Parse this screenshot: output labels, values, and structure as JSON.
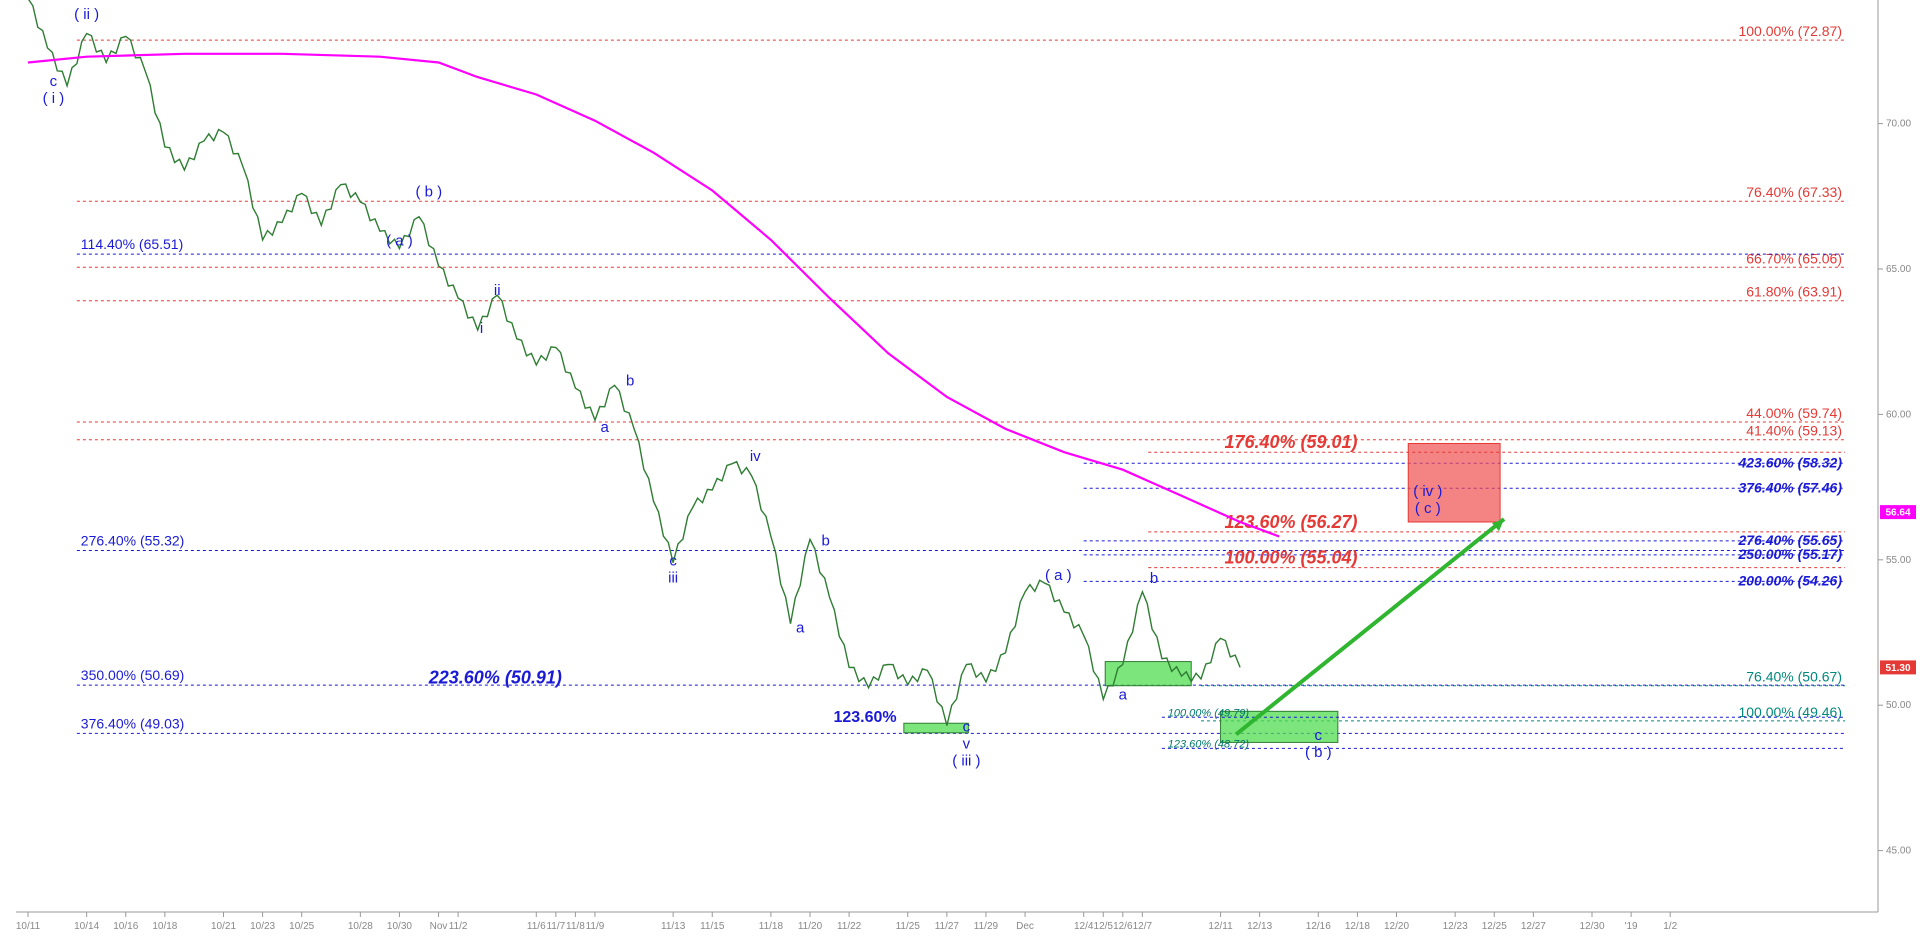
{
  "chart_data": {
    "type": "line",
    "title": "",
    "xlabel": "",
    "ylabel": "",
    "ylim": [
      43.5,
      74.5
    ],
    "grid": false,
    "x_ticks": [
      {
        "label": "10/11",
        "t": 0
      },
      {
        "label": "10/14",
        "t": 3
      },
      {
        "label": "10/16",
        "t": 5
      },
      {
        "label": "10/18",
        "t": 7
      },
      {
        "label": "10/21",
        "t": 10
      },
      {
        "label": "10/23",
        "t": 12
      },
      {
        "label": "10/25",
        "t": 14
      },
      {
        "label": "10/28",
        "t": 17
      },
      {
        "label": "10/30",
        "t": 19
      },
      {
        "label": "Nov",
        "t": 21
      },
      {
        "label": "11/2",
        "t": 22
      },
      {
        "label": "11/6",
        "t": 26
      },
      {
        "label": "11/7",
        "t": 27
      },
      {
        "label": "11/8",
        "t": 28
      },
      {
        "label": "11/9",
        "t": 29
      },
      {
        "label": "11/13",
        "t": 33
      },
      {
        "label": "11/15",
        "t": 35
      },
      {
        "label": "11/18",
        "t": 38
      },
      {
        "label": "11/20",
        "t": 40
      },
      {
        "label": "11/22",
        "t": 42
      },
      {
        "label": "11/25",
        "t": 45
      },
      {
        "label": "11/27",
        "t": 47
      },
      {
        "label": "11/29",
        "t": 49
      },
      {
        "label": "Dec",
        "t": 51
      },
      {
        "label": "12/4",
        "t": 54
      },
      {
        "label": "12/5",
        "t": 55
      },
      {
        "label": "12/6",
        "t": 56
      },
      {
        "label": "12/7",
        "t": 57
      },
      {
        "label": "12/11",
        "t": 61
      },
      {
        "label": "12/13",
        "t": 63
      },
      {
        "label": "12/16",
        "t": 66
      },
      {
        "label": "12/18",
        "t": 68
      },
      {
        "label": "12/20",
        "t": 70
      },
      {
        "label": "12/23",
        "t": 73
      },
      {
        "label": "12/25",
        "t": 75
      },
      {
        "label": "12/27",
        "t": 77
      },
      {
        "label": "12/30",
        "t": 80
      },
      {
        "label": "'19",
        "t": 82
      },
      {
        "label": "1/2",
        "t": 84
      }
    ],
    "y_ticks": [
      {
        "label": "70.00",
        "value": 70
      },
      {
        "label": "65.00",
        "value": 65
      },
      {
        "label": "60.00",
        "value": 60
      },
      {
        "label": "55.00",
        "value": 55
      },
      {
        "label": "50.00",
        "value": 50
      },
      {
        "label": "45.00",
        "value": 45
      }
    ],
    "series": [
      {
        "color": "#2e7d32",
        "points": [
          [
            0,
            74.3
          ],
          [
            1,
            72.6
          ],
          [
            2,
            71.3
          ],
          [
            3,
            73.1
          ],
          [
            4,
            72.1
          ],
          [
            5,
            73.0
          ],
          [
            6,
            71.8
          ],
          [
            7,
            69.2
          ],
          [
            8,
            68.4
          ],
          [
            9,
            69.4
          ],
          [
            10,
            69.7
          ],
          [
            11,
            68.5
          ],
          [
            12,
            66.0
          ],
          [
            13,
            66.6
          ],
          [
            14,
            67.6
          ],
          [
            15,
            66.5
          ],
          [
            16,
            67.9
          ],
          [
            17,
            67.3
          ],
          [
            18,
            66.3
          ],
          [
            19,
            65.7
          ],
          [
            20,
            66.8
          ],
          [
            21,
            65.1
          ],
          [
            22,
            64.0
          ],
          [
            23,
            62.9
          ],
          [
            24,
            64.1
          ],
          [
            25,
            62.6
          ],
          [
            26,
            61.7
          ],
          [
            27,
            62.3
          ],
          [
            28,
            60.9
          ],
          [
            29,
            59.8
          ],
          [
            30,
            61.0
          ],
          [
            31,
            59.5
          ],
          [
            32,
            57.0
          ],
          [
            33,
            54.9
          ],
          [
            34,
            56.8
          ],
          [
            35,
            57.4
          ],
          [
            36,
            58.3
          ],
          [
            37,
            57.9
          ],
          [
            38,
            55.8
          ],
          [
            39,
            52.8
          ],
          [
            40,
            55.7
          ],
          [
            41,
            53.7
          ],
          [
            42,
            51.3
          ],
          [
            43,
            50.6
          ],
          [
            44,
            51.4
          ],
          [
            45,
            50.7
          ],
          [
            46,
            51.2
          ],
          [
            47,
            49.3
          ],
          [
            48,
            51.4
          ],
          [
            49,
            50.8
          ],
          [
            50,
            51.8
          ],
          [
            51,
            53.9
          ],
          [
            52,
            54.2
          ],
          [
            53,
            53.2
          ],
          [
            54,
            52.4
          ],
          [
            55,
            50.2
          ],
          [
            56,
            51.4
          ],
          [
            57,
            53.9
          ],
          [
            58,
            51.6
          ],
          [
            59,
            51.0
          ],
          [
            60,
            50.9
          ],
          [
            61,
            52.3
          ],
          [
            62,
            51.3
          ]
        ]
      },
      {
        "color": "#ff00ff",
        "points": [
          [
            0,
            72.1
          ],
          [
            3,
            72.3
          ],
          [
            8,
            72.4
          ],
          [
            13,
            72.4
          ],
          [
            18,
            72.3
          ],
          [
            21,
            72.1
          ],
          [
            23,
            71.6
          ],
          [
            26,
            71.0
          ],
          [
            29,
            70.1
          ],
          [
            32,
            69.0
          ],
          [
            35,
            67.7
          ],
          [
            38,
            66.0
          ],
          [
            41,
            64.0
          ],
          [
            44,
            62.1
          ],
          [
            47,
            60.6
          ],
          [
            50,
            59.5
          ],
          [
            53,
            58.7
          ],
          [
            56,
            58.1
          ],
          [
            59,
            57.2
          ],
          [
            62,
            56.3
          ],
          [
            64,
            55.8
          ]
        ]
      }
    ],
    "fib_right": [
      {
        "label": "100.00% (72.87)",
        "value": 72.87,
        "color": "#e53935"
      },
      {
        "label": "76.40% (67.33)",
        "value": 67.33,
        "color": "#e53935"
      },
      {
        "label": "66.70% (65.06)",
        "value": 65.06,
        "color": "#e53935"
      },
      {
        "label": "61.80% (63.91)",
        "value": 63.91,
        "color": "#e53935"
      },
      {
        "label": "44.00% (59.74)",
        "value": 59.74,
        "color": "#e53935"
      },
      {
        "label": "41.40% (59.13)",
        "value": 59.13,
        "color": "#e53935"
      },
      {
        "label": "76.40% (50.67)",
        "value": 50.67,
        "color": "#00897b"
      },
      {
        "label": "100.00% (49.46)",
        "value": 49.46,
        "color": "#00897b"
      }
    ],
    "fib_right_blue": [
      {
        "label": "423.60% (58.32)",
        "value": 58.32
      },
      {
        "label": "376.40% (57.46)",
        "value": 57.46
      },
      {
        "label": "276.40% (55.65)",
        "value": 55.65
      },
      {
        "label": "250.00% (55.17)",
        "value": 55.17
      },
      {
        "label": "200.00% (54.26)",
        "value": 54.26
      }
    ],
    "fib_left": [
      {
        "label": "114.40% (65.51)",
        "value": 65.51
      },
      {
        "label": "276.40% (55.32)",
        "value": 55.32
      },
      {
        "label": "350.00% (50.69)",
        "value": 50.69
      },
      {
        "label": "376.40% (49.03)",
        "value": 49.03
      }
    ],
    "fib_mid": [
      {
        "label": "176.40% (59.01)",
        "value": 59.01,
        "color": "#e53935"
      },
      {
        "label": "123.60% (56.27)",
        "value": 56.27,
        "color": "#e53935"
      },
      {
        "label": "100.00% (55.04)",
        "value": 55.04,
        "color": "#e53935"
      },
      {
        "label": "223.60% (50.91)",
        "value": 50.91,
        "color": "#1a1ad6"
      },
      {
        "label": "123.60%",
        "value": 49.6,
        "color": "#1a1ad6"
      },
      {
        "label": "100.00% (49.79)",
        "value": 49.79,
        "color": "#00796b"
      },
      {
        "label": "123.60% (48.72)",
        "value": 48.72,
        "color": "#00796b"
      }
    ],
    "wave_labels": [
      {
        "lines": [
          "c",
          "( i )"
        ],
        "t": 1.3,
        "y": 71.3
      },
      {
        "lines": [
          "( ii )"
        ],
        "t": 3,
        "y": 73.6
      },
      {
        "lines": [
          "( a )"
        ],
        "t": 19,
        "y": 65.8
      },
      {
        "lines": [
          "( b )"
        ],
        "t": 20.5,
        "y": 67.5
      },
      {
        "lines": [
          "ii"
        ],
        "t": 24,
        "y": 64.1
      },
      {
        "lines": [
          "i"
        ],
        "t": 23.2,
        "y": 62.8
      },
      {
        "lines": [
          "b"
        ],
        "t": 30.8,
        "y": 61.0
      },
      {
        "lines": [
          "a"
        ],
        "t": 29.5,
        "y": 59.4
      },
      {
        "lines": [
          "c",
          "iii"
        ],
        "t": 33,
        "y": 54.8
      },
      {
        "lines": [
          "iv"
        ],
        "t": 37.2,
        "y": 58.4
      },
      {
        "lines": [
          "b"
        ],
        "t": 40.8,
        "y": 55.5
      },
      {
        "lines": [
          "a"
        ],
        "t": 39.5,
        "y": 52.5
      },
      {
        "lines": [
          "c",
          "v",
          "( iii )"
        ],
        "t": 48,
        "y": 49.1
      },
      {
        "lines": [
          "( a )"
        ],
        "t": 52.7,
        "y": 54.3
      },
      {
        "lines": [
          "b"
        ],
        "t": 57.6,
        "y": 54.2
      },
      {
        "lines": [
          "a"
        ],
        "t": 56,
        "y": 50.2
      },
      {
        "lines": [
          "c",
          "( b )"
        ],
        "t": 66,
        "y": 48.8
      },
      {
        "lines": [
          "( iv )",
          "( c )"
        ],
        "t": 71.6,
        "y": 57.2
      }
    ],
    "zones": [
      {
        "type": "red",
        "t0": 70.6,
        "t1": 75.3,
        "y0": 56.3,
        "y1": 59.0
      },
      {
        "type": "green",
        "t0": 61.0,
        "t1": 67.0,
        "y0": 48.72,
        "y1": 49.79
      },
      {
        "type": "green",
        "t0": 55.1,
        "t1": 59.5,
        "y0": 50.67,
        "y1": 51.5
      },
      {
        "type": "green",
        "t0": 44.8,
        "t1": 48.1,
        "y0": 49.05,
        "y1": 49.38
      }
    ],
    "current_prices": [
      {
        "label": "56.64",
        "value": 56.64,
        "color": "#ff00ff"
      },
      {
        "label": "51.30",
        "value": 51.3,
        "color": "#e53935"
      }
    ]
  }
}
